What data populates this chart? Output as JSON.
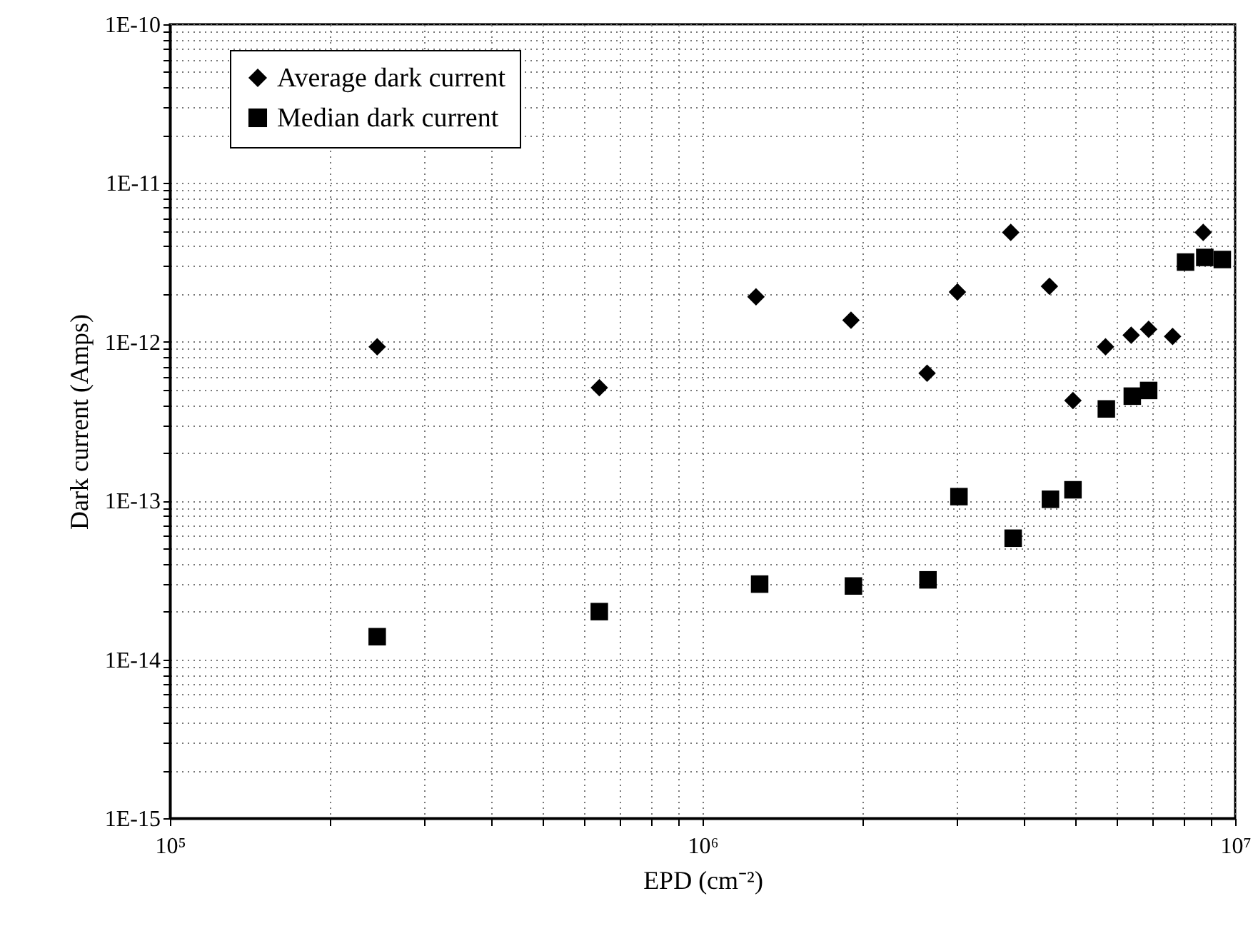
{
  "chart_data": {
    "type": "scatter",
    "xlabel": "EPD (cm⁻²)",
    "ylabel": "Dark current (Amps)",
    "log": "xy",
    "grid": true,
    "legend": "top left",
    "xlim": [
      100000,
      10000000
    ],
    "ylim": [
      1e-15,
      1e-10
    ],
    "xticks": [
      {
        "value": 100000,
        "label": "10⁵"
      },
      {
        "value": 200000,
        "label": null
      },
      {
        "value": 300000,
        "label": null
      },
      {
        "value": 400000,
        "label": null
      },
      {
        "value": 500000,
        "label": null
      },
      {
        "value": 600000,
        "label": null
      },
      {
        "value": 700000,
        "label": null
      },
      {
        "value": 800000,
        "label": null
      },
      {
        "value": 900000,
        "label": null
      },
      {
        "value": 1000000,
        "label": "10⁶"
      },
      {
        "value": 2000000,
        "label": null
      },
      {
        "value": 3000000,
        "label": null
      },
      {
        "value": 4000000,
        "label": null
      },
      {
        "value": 5000000,
        "label": null
      },
      {
        "value": 6000000,
        "label": null
      },
      {
        "value": 7000000,
        "label": null
      },
      {
        "value": 8000000,
        "label": null
      },
      {
        "value": 9000000,
        "label": null
      },
      {
        "value": 10000000,
        "label": "10⁷"
      }
    ],
    "yticks": [
      {
        "value": 1e-15,
        "label": "1E-15"
      },
      {
        "value": 2e-15,
        "label": null
      },
      {
        "value": 3e-15,
        "label": null
      },
      {
        "value": 4e-15,
        "label": null
      },
      {
        "value": 5e-15,
        "label": null
      },
      {
        "value": 6e-15,
        "label": null
      },
      {
        "value": 7e-15,
        "label": null
      },
      {
        "value": 8e-15,
        "label": null
      },
      {
        "value": 9e-15,
        "label": null
      },
      {
        "value": 1e-14,
        "label": "1E-14"
      },
      {
        "value": 2e-14,
        "label": null
      },
      {
        "value": 3e-14,
        "label": null
      },
      {
        "value": 4e-14,
        "label": null
      },
      {
        "value": 5e-14,
        "label": null
      },
      {
        "value": 6e-14,
        "label": null
      },
      {
        "value": 7e-14,
        "label": null
      },
      {
        "value": 8e-14,
        "label": null
      },
      {
        "value": 9e-14,
        "label": null
      },
      {
        "value": 1e-13,
        "label": "1E-13"
      },
      {
        "value": 2e-13,
        "label": null
      },
      {
        "value": 3e-13,
        "label": null
      },
      {
        "value": 4e-13,
        "label": null
      },
      {
        "value": 5e-13,
        "label": null
      },
      {
        "value": 6e-13,
        "label": null
      },
      {
        "value": 7e-13,
        "label": null
      },
      {
        "value": 8e-13,
        "label": null
      },
      {
        "value": 9e-13,
        "label": null
      },
      {
        "value": 1e-12,
        "label": "1E-12"
      },
      {
        "value": 2e-12,
        "label": null
      },
      {
        "value": 3e-12,
        "label": null
      },
      {
        "value": 4e-12,
        "label": null
      },
      {
        "value": 5e-12,
        "label": null
      },
      {
        "value": 6e-12,
        "label": null
      },
      {
        "value": 7e-12,
        "label": null
      },
      {
        "value": 8e-12,
        "label": null
      },
      {
        "value": 9e-12,
        "label": null
      },
      {
        "value": 1e-11,
        "label": "1E-11"
      },
      {
        "value": 2e-11,
        "label": null
      },
      {
        "value": 3e-11,
        "label": null
      },
      {
        "value": 4e-11,
        "label": null
      },
      {
        "value": 5e-11,
        "label": null
      },
      {
        "value": 6e-11,
        "label": null
      },
      {
        "value": 7e-11,
        "label": null
      },
      {
        "value": 8e-11,
        "label": null
      },
      {
        "value": 9e-11,
        "label": null
      },
      {
        "value": 1e-10,
        "label": "1E-10"
      }
    ],
    "series": [
      {
        "name": "Average dark current",
        "color": "#000000",
        "marker": "diamond",
        "x": [
          245000,
          640000,
          1260000,
          1900000,
          2640000,
          3010000,
          3790000,
          4480000,
          4960000,
          5710000,
          6380000,
          6880000,
          7630000,
          8710000
        ],
        "values": [
          9.3e-13,
          5.15e-13,
          1.92e-12,
          1.37e-12,
          6.35e-13,
          2.06e-12,
          4.89e-12,
          2.24e-12,
          4.27e-13,
          9.3e-13,
          1.1e-12,
          1.2e-12,
          1.08e-12,
          4.89e-12
        ]
      },
      {
        "name": "Median dark current",
        "color": "#000000",
        "marker": "square",
        "x": [
          245000,
          640000,
          1280000,
          1920000,
          2650000,
          3030000,
          3830000,
          4500000,
          4960000,
          5730000,
          6410000,
          6880000,
          8070000,
          8770000,
          9460000
        ],
        "values": [
          1.39e-14,
          2e-14,
          2.98e-14,
          2.9e-14,
          3.17e-14,
          1.06e-13,
          5.8e-14,
          1.02e-13,
          1.17e-13,
          3.78e-13,
          4.55e-13,
          4.94e-13,
          3.18e-12,
          3.4e-12,
          3.3e-12
        ]
      }
    ]
  }
}
